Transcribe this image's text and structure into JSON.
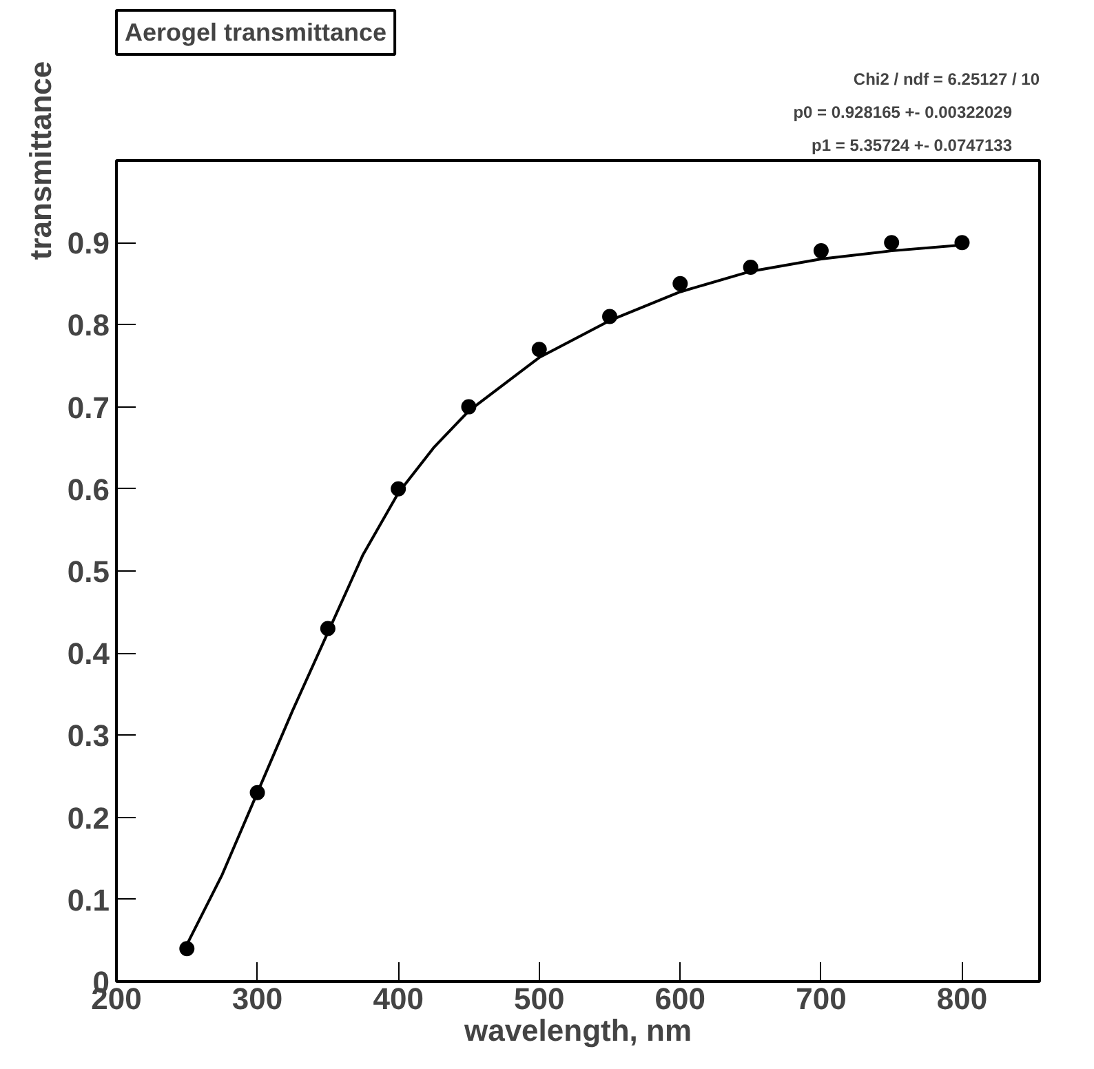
{
  "chart_data": {
    "type": "scatter",
    "title": "Aerogel transmittance",
    "xlabel": "wavelength, nm",
    "ylabel": "transmittance",
    "x": [
      250,
      300,
      350,
      400,
      450,
      500,
      550,
      600,
      650,
      700,
      750,
      800
    ],
    "series": [
      {
        "color": "#000000",
        "marker": "circle",
        "values": [
          0.04,
          0.23,
          0.43,
          0.6,
          0.7,
          0.77,
          0.81,
          0.85,
          0.87,
          0.89,
          0.9,
          0.9
        ]
      },
      {
        "type": "line",
        "color": "#000000",
        "x": [
          250,
          275,
          300,
          325,
          350,
          375,
          400,
          425,
          450,
          500,
          550,
          600,
          650,
          700,
          750,
          800
        ],
        "values": [
          0.045,
          0.13,
          0.23,
          0.33,
          0.425,
          0.52,
          0.595,
          0.65,
          0.695,
          0.76,
          0.805,
          0.84,
          0.865,
          0.88,
          0.89,
          0.897
        ],
        "line_style": "solid"
      }
    ],
    "xlim": [
      200,
      855
    ],
    "ylim": [
      0,
      1
    ],
    "xticks": [
      200,
      300,
      400,
      500,
      600,
      700,
      800
    ],
    "yticks": [
      {
        "value": 0,
        "label": "0"
      },
      0.1,
      0.2,
      0.3,
      0.4,
      0.5,
      0.6,
      0.7,
      0.8,
      0.9
    ],
    "grid": false,
    "annotations": [
      "Chi2 / ndf = 6.25127 / 10",
      "p0       = 0.928165 +- 0.00322029",
      "p1       = 5.35724 +- 0.0747133"
    ]
  }
}
